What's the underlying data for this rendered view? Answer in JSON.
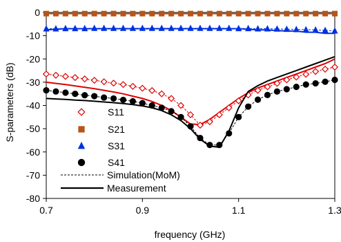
{
  "chart_data": {
    "type": "line",
    "title": "",
    "xlabel": "frequency (GHz)",
    "ylabel": "S-parameters (dB)",
    "xlim": [
      0.7,
      1.3
    ],
    "ylim": [
      -80,
      0
    ],
    "xticks": [
      "0.7",
      "0.9",
      "1.1",
      "1.3"
    ],
    "xtick_values": [
      0.7,
      0.9,
      1.1,
      1.3
    ],
    "yticks": [
      "0",
      "-10",
      "-20",
      "-30",
      "-40",
      "-50",
      "-60",
      "-70",
      "-80"
    ],
    "ytick_values": [
      0,
      -10,
      -20,
      -30,
      -40,
      -50,
      -60,
      -70,
      -80
    ],
    "grid": false,
    "legend_position": "lower-left",
    "legend_label_simulation": "Simulation(MoM)",
    "legend_label_measurement": "Measurement",
    "series": [
      {
        "name": "S11",
        "marker": "diamond-open",
        "color": "#e00000",
        "simulation": {
          "x": [
            0.7,
            0.72,
            0.74,
            0.76,
            0.78,
            0.8,
            0.82,
            0.84,
            0.86,
            0.88,
            0.9,
            0.92,
            0.94,
            0.96,
            0.98,
            1.0,
            1.02,
            1.04,
            1.06,
            1.08,
            1.1,
            1.12,
            1.14,
            1.16,
            1.18,
            1.2,
            1.22,
            1.24,
            1.26,
            1.28,
            1.3
          ],
          "y": [
            -26.5,
            -27.0,
            -27.5,
            -28.0,
            -28.6,
            -29.2,
            -29.8,
            -30.4,
            -31.0,
            -31.8,
            -32.6,
            -33.6,
            -35.0,
            -37.0,
            -40.0,
            -44.0,
            -48.5,
            -47.0,
            -44.0,
            -41.0,
            -38.0,
            -35.5,
            -33.5,
            -32.0,
            -30.5,
            -29.0,
            -27.8,
            -26.6,
            -25.4,
            -24.4,
            -23.5
          ]
        },
        "measurement": {
          "x": [
            0.7,
            0.72,
            0.74,
            0.76,
            0.78,
            0.8,
            0.82,
            0.84,
            0.86,
            0.88,
            0.9,
            0.92,
            0.94,
            0.96,
            0.98,
            1.0,
            1.02,
            1.04,
            1.06,
            1.08,
            1.1,
            1.12,
            1.14,
            1.16,
            1.18,
            1.2,
            1.22,
            1.24,
            1.26,
            1.28,
            1.3
          ],
          "y": [
            -30.0,
            -30.5,
            -31.0,
            -31.6,
            -32.2,
            -32.8,
            -33.5,
            -34.2,
            -35.0,
            -36.0,
            -37.0,
            -38.3,
            -40.0,
            -42.2,
            -45.0,
            -48.0,
            -48.2,
            -46.0,
            -43.0,
            -40.0,
            -37.0,
            -34.5,
            -32.5,
            -31.0,
            -29.5,
            -28.0,
            -26.5,
            -25.0,
            -23.5,
            -22.0,
            -20.0
          ]
        }
      },
      {
        "name": "S21",
        "marker": "square",
        "color": "#b5541b",
        "simulation": {
          "x": [
            0.7,
            0.72,
            0.74,
            0.76,
            0.78,
            0.8,
            0.82,
            0.84,
            0.86,
            0.88,
            0.9,
            0.92,
            0.94,
            0.96,
            0.98,
            1.0,
            1.02,
            1.04,
            1.06,
            1.08,
            1.1,
            1.12,
            1.14,
            1.16,
            1.18,
            1.2,
            1.22,
            1.24,
            1.26,
            1.28,
            1.3
          ],
          "y": [
            -0.5,
            -0.5,
            -0.5,
            -0.5,
            -0.5,
            -0.5,
            -0.5,
            -0.5,
            -0.5,
            -0.5,
            -0.5,
            -0.5,
            -0.5,
            -0.5,
            -0.5,
            -0.5,
            -0.5,
            -0.5,
            -0.5,
            -0.5,
            -0.5,
            -0.5,
            -0.5,
            -0.5,
            -0.5,
            -0.5,
            -0.5,
            -0.5,
            -0.5,
            -0.5,
            -0.5
          ]
        },
        "measurement": {
          "x": [
            0.7,
            0.72,
            0.74,
            0.76,
            0.78,
            0.8,
            0.82,
            0.84,
            0.86,
            0.88,
            0.9,
            0.92,
            0.94,
            0.96,
            0.98,
            1.0,
            1.02,
            1.04,
            1.06,
            1.08,
            1.1,
            1.12,
            1.14,
            1.16,
            1.18,
            1.2,
            1.22,
            1.24,
            1.26,
            1.28,
            1.3
          ],
          "y": [
            -0.5,
            -0.5,
            -0.5,
            -0.5,
            -0.5,
            -0.5,
            -0.5,
            -0.5,
            -0.5,
            -0.5,
            -0.5,
            -0.5,
            -0.5,
            -0.5,
            -0.5,
            -0.5,
            -0.5,
            -0.5,
            -0.5,
            -0.5,
            -0.5,
            -0.5,
            -0.5,
            -0.5,
            -0.5,
            -0.5,
            -0.5,
            -0.5,
            -0.5,
            -0.5,
            -0.5
          ]
        }
      },
      {
        "name": "S31",
        "marker": "triangle",
        "color": "#0030e0",
        "simulation": {
          "x": [
            0.7,
            0.72,
            0.74,
            0.76,
            0.78,
            0.8,
            0.82,
            0.84,
            0.86,
            0.88,
            0.9,
            0.92,
            0.94,
            0.96,
            0.98,
            1.0,
            1.02,
            1.04,
            1.06,
            1.08,
            1.1,
            1.12,
            1.14,
            1.16,
            1.18,
            1.2,
            1.22,
            1.24,
            1.26,
            1.28,
            1.3
          ],
          "y": [
            -7.0,
            -7.0,
            -6.9,
            -6.9,
            -6.9,
            -6.8,
            -6.8,
            -6.8,
            -6.8,
            -6.8,
            -6.8,
            -6.8,
            -6.8,
            -6.8,
            -6.8,
            -6.8,
            -6.8,
            -6.8,
            -6.8,
            -6.8,
            -6.9,
            -6.9,
            -7.0,
            -7.0,
            -7.1,
            -7.2,
            -7.3,
            -7.4,
            -7.5,
            -7.7,
            -7.9
          ]
        },
        "measurement": {
          "x": [
            0.7,
            0.72,
            0.74,
            0.76,
            0.78,
            0.8,
            0.82,
            0.84,
            0.86,
            0.88,
            0.9,
            0.92,
            0.94,
            0.96,
            0.98,
            1.0,
            1.02,
            1.04,
            1.06,
            1.08,
            1.1,
            1.12,
            1.14,
            1.16,
            1.18,
            1.2,
            1.22,
            1.24,
            1.26,
            1.28,
            1.3
          ],
          "y": [
            -7.5,
            -7.2,
            -7.0,
            -7.0,
            -7.0,
            -7.0,
            -7.0,
            -7.0,
            -7.0,
            -7.0,
            -7.0,
            -7.0,
            -7.0,
            -7.0,
            -7.0,
            -7.0,
            -7.0,
            -7.0,
            -7.0,
            -7.0,
            -7.0,
            -7.2,
            -7.5,
            -7.5,
            -7.8,
            -8.0,
            -8.0,
            -8.5,
            -8.5,
            -9.0,
            -9.0
          ]
        }
      },
      {
        "name": "S41",
        "marker": "circle",
        "color": "#000000",
        "simulation": {
          "x": [
            0.7,
            0.72,
            0.74,
            0.76,
            0.78,
            0.8,
            0.82,
            0.84,
            0.86,
            0.88,
            0.9,
            0.92,
            0.94,
            0.96,
            0.98,
            1.0,
            1.02,
            1.04,
            1.06,
            1.08,
            1.1,
            1.12,
            1.14,
            1.16,
            1.18,
            1.2,
            1.22,
            1.24,
            1.26,
            1.28,
            1.3
          ],
          "y": [
            -33.5,
            -34.0,
            -34.5,
            -35.0,
            -35.6,
            -36.0,
            -36.6,
            -37.0,
            -37.6,
            -38.2,
            -39.0,
            -40.0,
            -41.0,
            -42.5,
            -45.0,
            -49.0,
            -54.0,
            -57.0,
            -57.0,
            -52.0,
            -45.0,
            -40.5,
            -37.5,
            -35.5,
            -34.0,
            -33.0,
            -32.0,
            -31.0,
            -30.5,
            -29.8,
            -29.0
          ]
        },
        "measurement": {
          "x": [
            0.7,
            0.72,
            0.74,
            0.76,
            0.78,
            0.8,
            0.82,
            0.84,
            0.86,
            0.88,
            0.9,
            0.92,
            0.94,
            0.96,
            0.98,
            1.0,
            1.02,
            1.04,
            1.06,
            1.08,
            1.1,
            1.12,
            1.14,
            1.16,
            1.18,
            1.2,
            1.22,
            1.24,
            1.26,
            1.28,
            1.3
          ],
          "y": [
            -37.0,
            -37.2,
            -37.4,
            -37.7,
            -37.9,
            -38.2,
            -38.5,
            -38.8,
            -39.2,
            -39.6,
            -40.2,
            -41.0,
            -42.2,
            -44.0,
            -46.5,
            -50.0,
            -54.5,
            -57.5,
            -58.0,
            -51.0,
            -41.0,
            -34.0,
            -31.5,
            -29.5,
            -28.0,
            -26.5,
            -25.0,
            -23.5,
            -22.0,
            -20.5,
            -19.0
          ]
        }
      }
    ]
  }
}
